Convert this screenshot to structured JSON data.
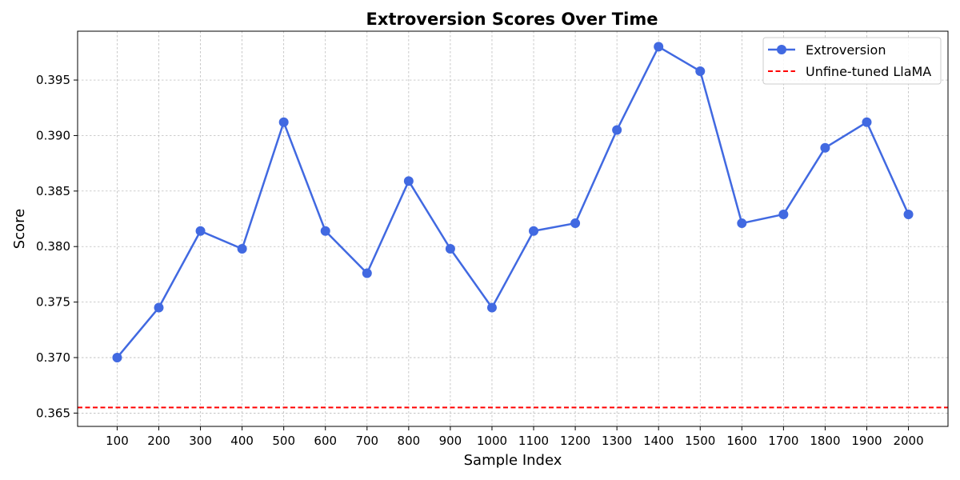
{
  "chart_data": {
    "type": "line",
    "title": "Extroversion Scores Over Time",
    "xlabel": "Sample Index",
    "ylabel": "Score",
    "categories": [
      "100",
      "200",
      "300",
      "400",
      "500",
      "600",
      "700",
      "800",
      "900",
      "1000",
      "1100",
      "1200",
      "1300",
      "1400",
      "1500",
      "1600",
      "1700",
      "1800",
      "1900",
      "2000"
    ],
    "x": [
      100,
      200,
      300,
      400,
      500,
      600,
      700,
      800,
      900,
      1000,
      1100,
      1200,
      1300,
      1400,
      1500,
      1600,
      1700,
      1800,
      1900,
      2000
    ],
    "series": [
      {
        "name": "Extroversion",
        "values": [
          0.37,
          0.3745,
          0.3814,
          0.3798,
          0.3912,
          0.3814,
          0.3776,
          0.3859,
          0.3798,
          0.3745,
          0.3814,
          0.3821,
          0.3905,
          0.398,
          0.3958,
          0.3821,
          0.3829,
          0.3889,
          0.3912,
          0.3829
        ],
        "color": "#4169e1",
        "style": "solid line with circle markers"
      }
    ],
    "reference_lines": [
      {
        "name": "Unfine-tuned LlaMA",
        "value": 0.3655,
        "color": "#ff0000",
        "style": "dashed"
      }
    ],
    "y_ticks": [
      "0.365",
      "0.370",
      "0.375",
      "0.380",
      "0.385",
      "0.390",
      "0.395"
    ],
    "y_tick_values": [
      0.365,
      0.37,
      0.375,
      0.38,
      0.385,
      0.39,
      0.395
    ],
    "ylim": [
      0.3638,
      0.3994
    ],
    "xlim": [
      5,
      2095
    ],
    "grid": true,
    "legend_position": "top-right"
  }
}
